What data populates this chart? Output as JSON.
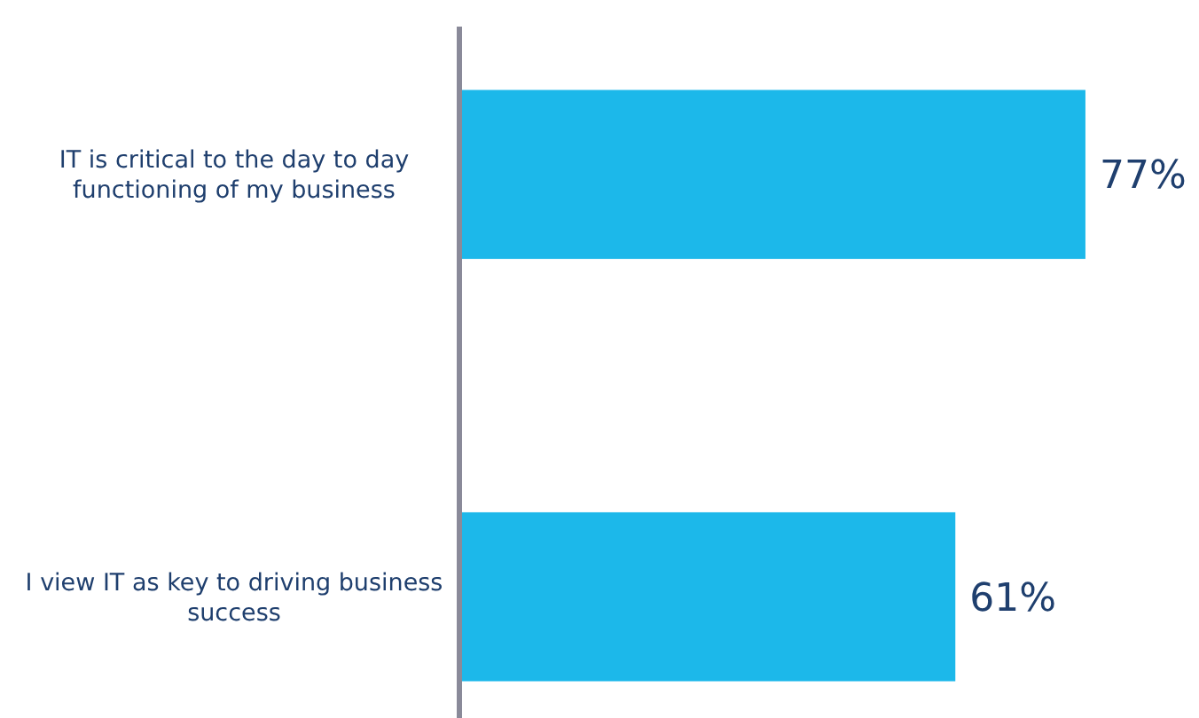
{
  "chart_data": {
    "type": "bar",
    "orientation": "horizontal",
    "categories": [
      "IT is critical to the day to day functioning of my business",
      "I view IT as key to driving business success"
    ],
    "values": [
      77,
      61
    ],
    "color": "#1cb8ea",
    "value_labels": [
      "77%",
      "61%"
    ]
  }
}
